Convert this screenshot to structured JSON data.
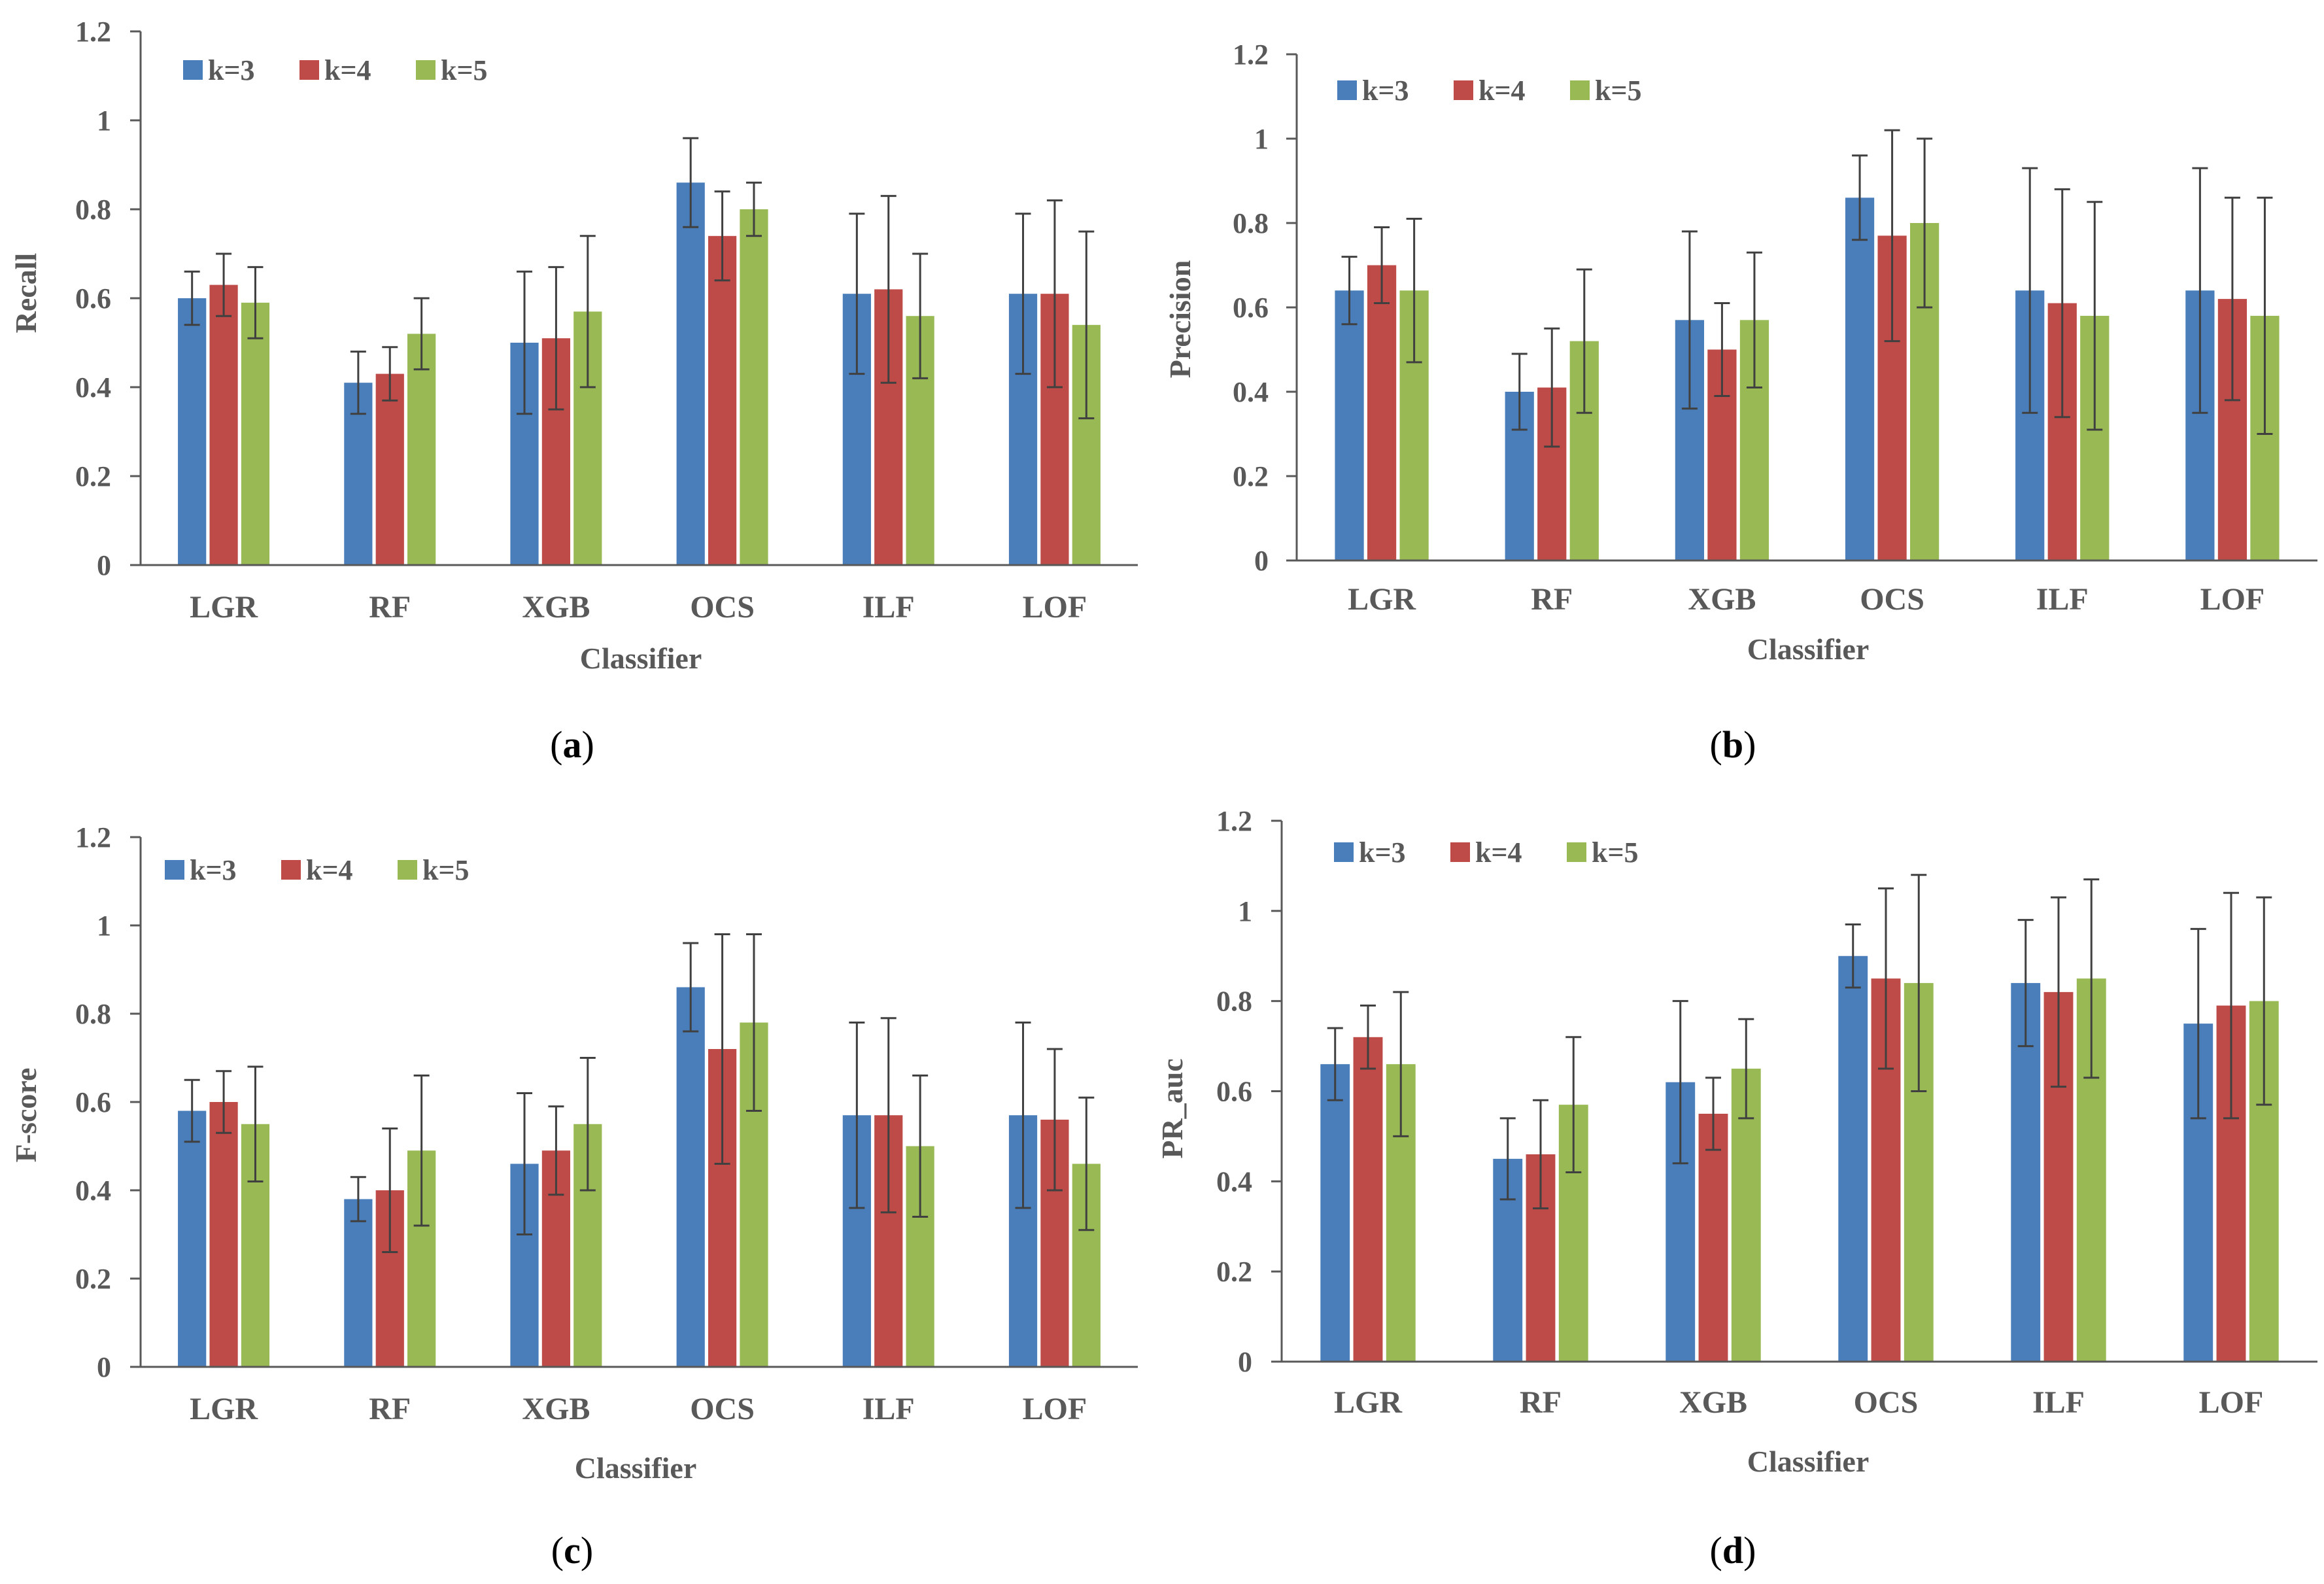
{
  "series_colors": [
    "#4a7ebb",
    "#be4b48",
    "#98b954"
  ],
  "chart_data": [
    {
      "type": "bar",
      "panel": "a",
      "caption_letter": "a",
      "categories": [
        "LGR",
        "RF",
        "XGB",
        "OCS",
        "ILF",
        "LOF"
      ],
      "series": [
        {
          "name": "k=3",
          "values": [
            0.6,
            0.41,
            0.5,
            0.86,
            0.61,
            0.61
          ],
          "errors": [
            0.06,
            0.07,
            0.16,
            0.1,
            0.18,
            0.18
          ]
        },
        {
          "name": "k=4",
          "values": [
            0.63,
            0.43,
            0.51,
            0.74,
            0.62,
            0.61
          ],
          "errors": [
            0.07,
            0.06,
            0.16,
            0.1,
            0.21,
            0.21
          ]
        },
        {
          "name": "k=5",
          "values": [
            0.59,
            0.52,
            0.57,
            0.8,
            0.56,
            0.54
          ],
          "errors": [
            0.08,
            0.08,
            0.17,
            0.06,
            0.14,
            0.21
          ]
        }
      ],
      "ylabel": "Recall",
      "xlabel": "Classifier",
      "ylim": [
        0,
        1.2
      ],
      "yticks": [
        "0",
        "0.2",
        "0.4",
        "0.6",
        "0.8",
        "1",
        "1.2"
      ],
      "legend": "top-left"
    },
    {
      "type": "bar",
      "panel": "b",
      "caption_letter": "b",
      "categories": [
        "LGR",
        "RF",
        "XGB",
        "OCS",
        "ILF",
        "LOF"
      ],
      "series": [
        {
          "name": "k=3",
          "values": [
            0.64,
            0.4,
            0.57,
            0.86,
            0.64,
            0.64
          ],
          "errors": [
            0.08,
            0.09,
            0.21,
            0.1,
            0.29,
            0.29
          ]
        },
        {
          "name": "k=4",
          "values": [
            0.7,
            0.41,
            0.5,
            0.77,
            0.61,
            0.62
          ],
          "errors": [
            0.09,
            0.14,
            0.11,
            0.25,
            0.27,
            0.24
          ]
        },
        {
          "name": "k=5",
          "values": [
            0.64,
            0.52,
            0.57,
            0.8,
            0.58,
            0.58
          ],
          "errors": [
            0.17,
            0.17,
            0.16,
            0.2,
            0.27,
            0.28
          ]
        }
      ],
      "ylabel": "Precision",
      "xlabel": "Classifier",
      "ylim": [
        0,
        1.2
      ],
      "yticks": [
        "0",
        "0.2",
        "0.4",
        "0.6",
        "0.8",
        "1",
        "1.2"
      ],
      "legend": "top-left"
    },
    {
      "type": "bar",
      "panel": "c",
      "caption_letter": "c",
      "categories": [
        "LGR",
        "RF",
        "XGB",
        "OCS",
        "ILF",
        "LOF"
      ],
      "series": [
        {
          "name": "k=3",
          "values": [
            0.58,
            0.38,
            0.46,
            0.86,
            0.57,
            0.57
          ],
          "errors": [
            0.07,
            0.05,
            0.16,
            0.1,
            0.21,
            0.21
          ]
        },
        {
          "name": "k=4",
          "values": [
            0.6,
            0.4,
            0.49,
            0.72,
            0.57,
            0.56
          ],
          "errors": [
            0.07,
            0.14,
            0.1,
            0.26,
            0.22,
            0.16
          ]
        },
        {
          "name": "k=5",
          "values": [
            0.55,
            0.49,
            0.55,
            0.78,
            0.5,
            0.46
          ],
          "errors": [
            0.13,
            0.17,
            0.15,
            0.2,
            0.16,
            0.15
          ]
        }
      ],
      "ylabel": "F-score",
      "xlabel": "Classifier",
      "ylim": [
        0,
        1.2
      ],
      "yticks": [
        "0",
        "0.2",
        "0.4",
        "0.6",
        "0.8",
        "1",
        "1.2"
      ],
      "legend": "top-left"
    },
    {
      "type": "bar",
      "panel": "d",
      "caption_letter": "d",
      "categories": [
        "LGR",
        "RF",
        "XGB",
        "OCS",
        "ILF",
        "LOF"
      ],
      "series": [
        {
          "name": "k=3",
          "values": [
            0.66,
            0.45,
            0.62,
            0.9,
            0.84,
            0.75
          ],
          "errors": [
            0.08,
            0.09,
            0.18,
            0.07,
            0.14,
            0.21
          ]
        },
        {
          "name": "k=4",
          "values": [
            0.72,
            0.46,
            0.55,
            0.85,
            0.82,
            0.79
          ],
          "errors": [
            0.07,
            0.12,
            0.08,
            0.2,
            0.21,
            0.25
          ]
        },
        {
          "name": "k=5",
          "values": [
            0.66,
            0.57,
            0.65,
            0.84,
            0.85,
            0.8
          ],
          "errors": [
            0.16,
            0.15,
            0.11,
            0.24,
            0.22,
            0.23
          ]
        }
      ],
      "ylabel": "PR_auc",
      "xlabel": "Classifier",
      "ylim": [
        0,
        1.2
      ],
      "yticks": [
        "0",
        "0.2",
        "0.4",
        "0.6",
        "0.8",
        "1",
        "1.2"
      ],
      "legend": "top-left"
    }
  ]
}
